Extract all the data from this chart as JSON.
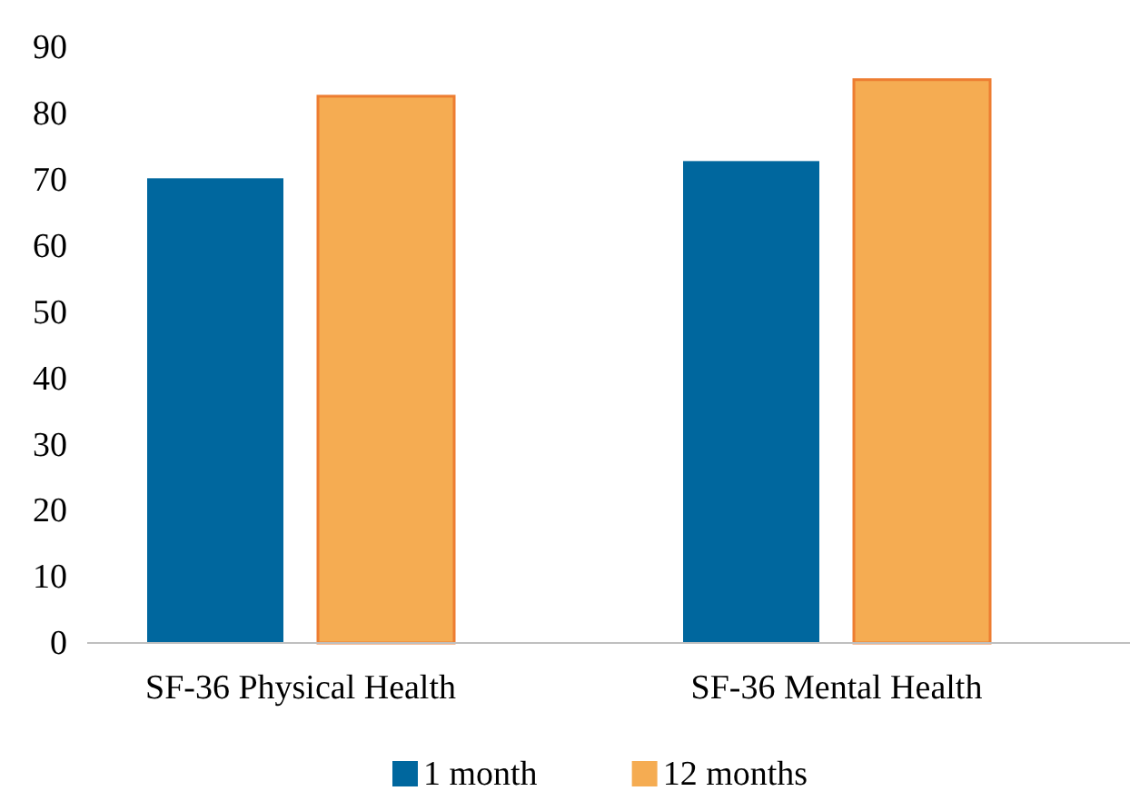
{
  "chart_data": {
    "type": "bar",
    "categories": [
      "SF-36 Physical Health",
      "SF-36 Mental Health"
    ],
    "series": [
      {
        "name": "1 month",
        "color": "#00679e",
        "values": [
          70.2,
          72.8
        ]
      },
      {
        "name": "12 months",
        "color": "#f5ac52",
        "values": [
          82.6,
          85.1
        ]
      }
    ],
    "ylim": [
      0,
      90
    ],
    "yticks": [
      0,
      10,
      20,
      30,
      40,
      50,
      60,
      70,
      80,
      90
    ],
    "grid": false,
    "legend": "bottom"
  }
}
